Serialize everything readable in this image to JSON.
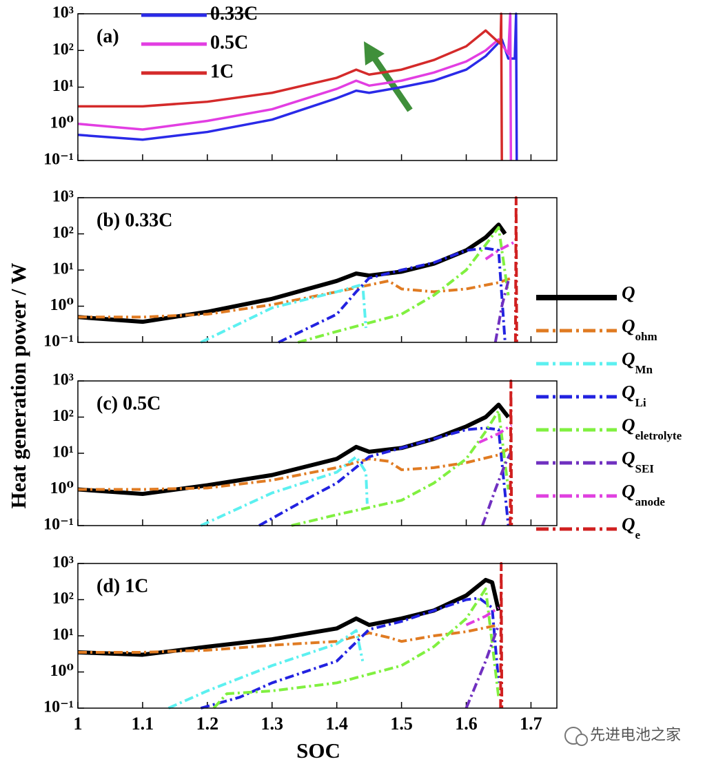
{
  "ylabel": "Heat generation power / W",
  "xlabel": "SOC",
  "watermark": "先进电池之家",
  "chart_data": [
    {
      "type": "line",
      "label": "(a)",
      "log_y": true,
      "legend": "upper left",
      "xlim": [
        1,
        1.74
      ],
      "ylim": [
        0.1,
        1000
      ],
      "xticks": [
        1,
        1.1,
        1.2,
        1.3,
        1.4,
        1.5,
        1.6,
        1.7
      ],
      "yticks": [
        {
          "value": 0.1,
          "label": "10⁻¹"
        },
        {
          "value": 1,
          "label": "10⁰"
        },
        {
          "value": 10,
          "label": "10¹"
        },
        {
          "value": 100,
          "label": "10²"
        },
        {
          "value": 1000,
          "label": "10³"
        }
      ],
      "series": [
        {
          "name": "0.33C",
          "color": "#2a2ae8",
          "x": [
            1.0,
            1.1,
            1.2,
            1.3,
            1.4,
            1.43,
            1.45,
            1.5,
            1.55,
            1.6,
            1.63,
            1.655,
            1.665,
            1.675,
            1.677,
            1.678
          ],
          "values": [
            0.5,
            0.37,
            0.6,
            1.3,
            5,
            8,
            7,
            10,
            15,
            30,
            70,
            200,
            60,
            60,
            1000,
            0.1
          ]
        },
        {
          "name": "0.5C",
          "color": "#e23ee2",
          "x": [
            1.0,
            1.1,
            1.2,
            1.3,
            1.4,
            1.43,
            1.45,
            1.5,
            1.55,
            1.6,
            1.63,
            1.65,
            1.665,
            1.668,
            1.669
          ],
          "values": [
            1.0,
            0.7,
            1.2,
            2.5,
            9,
            15,
            11,
            15,
            25,
            50,
            100,
            200,
            80,
            1000,
            0.1
          ]
        },
        {
          "name": "1C",
          "color": "#d42a2a",
          "x": [
            1.0,
            1.1,
            1.2,
            1.3,
            1.4,
            1.43,
            1.45,
            1.5,
            1.55,
            1.6,
            1.63,
            1.645,
            1.653,
            1.654,
            1.655
          ],
          "values": [
            3,
            3,
            4,
            7,
            18,
            30,
            22,
            30,
            55,
            130,
            350,
            200,
            150,
            1000,
            0.1
          ]
        }
      ]
    },
    {
      "type": "line",
      "label": "(b) 0.33C",
      "log_y": true,
      "legend": "right",
      "xlim": [
        1,
        1.74
      ],
      "ylim": [
        0.1,
        1000
      ],
      "xticks": [
        1,
        1.1,
        1.2,
        1.3,
        1.4,
        1.5,
        1.6,
        1.7
      ],
      "yticks": [
        {
          "value": 0.1,
          "label": "10⁻¹"
        },
        {
          "value": 1,
          "label": "10⁰"
        },
        {
          "value": 10,
          "label": "10¹"
        },
        {
          "value": 100,
          "label": "10²"
        },
        {
          "value": 1000,
          "label": "10³"
        }
      ],
      "series": [
        {
          "name": "Q",
          "sub": "",
          "color": "#000000",
          "style": "solid",
          "x": [
            1.0,
            1.1,
            1.2,
            1.3,
            1.4,
            1.43,
            1.45,
            1.5,
            1.55,
            1.6,
            1.63,
            1.65,
            1.66
          ],
          "values": [
            0.5,
            0.37,
            0.7,
            1.6,
            5,
            8,
            7,
            9,
            15,
            35,
            80,
            180,
            100
          ]
        },
        {
          "name": "Q",
          "sub": "ohm",
          "color": "#e07b22",
          "style": "dashdot",
          "x": [
            1.0,
            1.1,
            1.2,
            1.3,
            1.4,
            1.48,
            1.5,
            1.55,
            1.6,
            1.65,
            1.67
          ],
          "values": [
            0.5,
            0.5,
            0.6,
            1.1,
            2.5,
            5,
            3,
            2.5,
            3,
            4.5,
            6
          ]
        },
        {
          "name": "Q",
          "sub": "Mn",
          "color": "#5cf0f0",
          "style": "dashdot",
          "x": [
            1.19,
            1.3,
            1.4,
            1.44,
            1.445
          ],
          "values": [
            0.1,
            0.9,
            2.5,
            4,
            0.25
          ]
        },
        {
          "name": "Q",
          "sub": "Li",
          "color": "#2222e0",
          "style": "dashdot",
          "x": [
            1.31,
            1.4,
            1.43,
            1.45,
            1.5,
            1.55,
            1.6,
            1.63,
            1.65,
            1.66
          ],
          "values": [
            0.1,
            0.6,
            2.5,
            6,
            10,
            16,
            35,
            40,
            35,
            0.1
          ]
        },
        {
          "name": "Q",
          "sub": "eletrolyte",
          "color": "#80f040",
          "style": "dashdot",
          "x": [
            1.34,
            1.4,
            1.5,
            1.55,
            1.6,
            1.63,
            1.65,
            1.665
          ],
          "values": [
            0.1,
            0.2,
            0.6,
            2,
            10,
            50,
            150,
            2
          ]
        },
        {
          "name": "Q",
          "sub": "SEI",
          "color": "#7030c0",
          "style": "dashdot",
          "x": [
            1.645,
            1.655,
            1.665
          ],
          "values": [
            0.1,
            1,
            5
          ]
        },
        {
          "name": "Q",
          "sub": "anode",
          "color": "#e040e0",
          "style": "dashdot",
          "x": [
            1.63,
            1.65,
            1.675
          ],
          "values": [
            20,
            35,
            60
          ]
        },
        {
          "name": "Q",
          "sub": "e",
          "color": "#d02020",
          "style": "dashdot",
          "x": [
            1.676,
            1.677,
            1.678
          ],
          "values": [
            0.1,
            1000,
            0.1
          ]
        }
      ]
    },
    {
      "type": "line",
      "label": "(c) 0.5C",
      "log_y": true,
      "xlim": [
        1,
        1.74
      ],
      "ylim": [
        0.1,
        1000
      ],
      "xticks": [
        1,
        1.1,
        1.2,
        1.3,
        1.4,
        1.5,
        1.6,
        1.7
      ],
      "yticks": [
        {
          "value": 0.1,
          "label": "10⁻¹"
        },
        {
          "value": 1,
          "label": "10⁰"
        },
        {
          "value": 10,
          "label": "10¹"
        },
        {
          "value": 100,
          "label": "10²"
        },
        {
          "value": 1000,
          "label": "10³"
        }
      ],
      "series": [
        {
          "x": [
            1.0,
            1.1,
            1.2,
            1.3,
            1.4,
            1.43,
            1.45,
            1.5,
            1.55,
            1.6,
            1.63,
            1.65,
            1.665
          ],
          "values": [
            1,
            0.75,
            1.3,
            2.5,
            7,
            15,
            11,
            14,
            25,
            55,
            100,
            220,
            100
          ]
        },
        {
          "x": [
            1.0,
            1.1,
            1.2,
            1.3,
            1.4,
            1.45,
            1.48,
            1.5,
            1.55,
            1.6,
            1.65,
            1.67
          ],
          "values": [
            1,
            1,
            1.1,
            1.8,
            4,
            7,
            6,
            3.5,
            4,
            5.5,
            9,
            15
          ]
        },
        {
          "x": [
            1.19,
            1.3,
            1.4,
            1.43,
            1.445,
            1.447
          ],
          "values": [
            0.1,
            0.8,
            3,
            8,
            3,
            0.4
          ]
        },
        {
          "x": [
            1.28,
            1.35,
            1.4,
            1.45,
            1.5,
            1.55,
            1.6,
            1.63,
            1.65,
            1.665
          ],
          "values": [
            0.1,
            0.5,
            1.5,
            8,
            14,
            25,
            45,
            50,
            45,
            0.1
          ]
        },
        {
          "x": [
            1.33,
            1.4,
            1.5,
            1.55,
            1.6,
            1.63,
            1.65,
            1.665
          ],
          "values": [
            0.1,
            0.2,
            0.5,
            1.5,
            7,
            40,
            150,
            1
          ]
        },
        {
          "x": [
            1.625,
            1.645,
            1.66,
            1.668
          ],
          "values": [
            0.1,
            1,
            5,
            10
          ]
        },
        {
          "x": [
            1.62,
            1.65,
            1.67
          ],
          "values": [
            20,
            35,
            60
          ]
        },
        {
          "x": [
            1.668,
            1.669,
            1.67
          ],
          "values": [
            0.1,
            1000,
            0.1
          ]
        }
      ]
    },
    {
      "type": "line",
      "label": "(d) 1C",
      "log_y": true,
      "xlim": [
        1,
        1.74
      ],
      "ylim": [
        0.1,
        1000
      ],
      "xticks": [
        1,
        1.1,
        1.2,
        1.3,
        1.4,
        1.5,
        1.6,
        1.7
      ],
      "yticks": [
        {
          "value": 0.1,
          "label": "10⁻¹"
        },
        {
          "value": 1,
          "label": "10⁰"
        },
        {
          "value": 10,
          "label": "10¹"
        },
        {
          "value": 100,
          "label": "10²"
        },
        {
          "value": 1000,
          "label": "10³"
        }
      ],
      "series": [
        {
          "x": [
            1.0,
            1.1,
            1.2,
            1.3,
            1.4,
            1.43,
            1.45,
            1.5,
            1.55,
            1.6,
            1.63,
            1.64,
            1.65
          ],
          "values": [
            3.5,
            3,
            5,
            8,
            16,
            30,
            20,
            30,
            50,
            130,
            350,
            300,
            50
          ]
        },
        {
          "x": [
            1.0,
            1.1,
            1.2,
            1.3,
            1.4,
            1.45,
            1.48,
            1.5,
            1.55,
            1.6,
            1.65
          ],
          "values": [
            3.5,
            3.5,
            4,
            5.5,
            7,
            12,
            9,
            7,
            10,
            13,
            20
          ]
        },
        {
          "x": [
            1.14,
            1.2,
            1.3,
            1.4,
            1.43,
            1.44
          ],
          "values": [
            0.1,
            0.3,
            1.5,
            6,
            14,
            2
          ]
        },
        {
          "x": [
            1.19,
            1.25,
            1.3,
            1.4,
            1.45,
            1.5,
            1.55,
            1.6,
            1.62,
            1.64,
            1.65
          ],
          "values": [
            0.1,
            0.2,
            0.5,
            2,
            15,
            25,
            50,
            100,
            110,
            60,
            0.5
          ]
        },
        {
          "x": [
            1.21,
            1.23,
            1.3,
            1.4,
            1.5,
            1.55,
            1.6,
            1.63,
            1.65
          ],
          "values": [
            0.1,
            0.25,
            0.3,
            0.5,
            1.5,
            5,
            30,
            200,
            0.2
          ]
        },
        {
          "x": [
            1.6,
            1.63,
            1.65
          ],
          "values": [
            0.1,
            2,
            20
          ]
        },
        {
          "x": [
            1.6,
            1.63,
            1.65
          ],
          "values": [
            20,
            35,
            60
          ]
        },
        {
          "x": [
            1.653,
            1.654,
            1.655
          ],
          "values": [
            0.1,
            1000,
            0.1
          ]
        }
      ]
    }
  ]
}
